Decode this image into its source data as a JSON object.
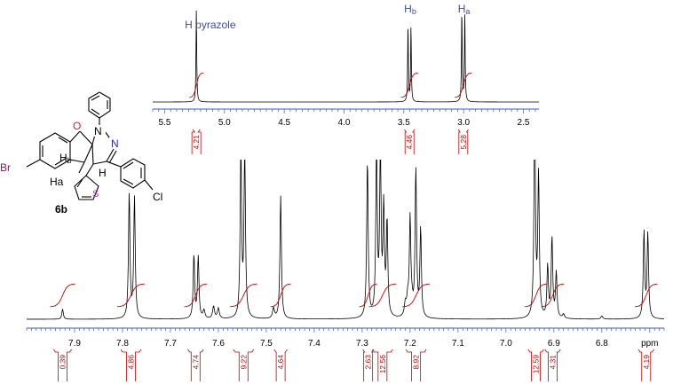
{
  "chart_data": [
    {
      "type": "line",
      "title": "",
      "xlabel": "ppm",
      "ylabel": "",
      "xlim": [
        8.0,
        6.67
      ],
      "x_ticks": [
        "7.9",
        "7.8",
        "7.7",
        "7.6",
        "7.5",
        "7.4",
        "7.3",
        "7.2",
        "7.1",
        "7.0",
        "6.9",
        "6.8",
        "ppm"
      ],
      "x_tick_values": [
        7.9,
        7.8,
        7.7,
        7.6,
        7.5,
        7.4,
        7.3,
        7.2,
        7.1,
        7.0,
        6.9,
        6.8,
        6.7
      ],
      "reversed_axis": true,
      "grid": false,
      "baseline_noise_points": [
        [
          7.63,
          0.04
        ],
        [
          7.61,
          0.06
        ],
        [
          7.6,
          0.05
        ],
        [
          7.485,
          0.05
        ],
        [
          7.205,
          0.08
        ],
        [
          7.21,
          0.06
        ],
        [
          7.196,
          0.05
        ],
        [
          6.8,
          0.015
        ],
        [
          6.88,
          0.02
        ]
      ],
      "peaks": [
        {
          "x": 7.925,
          "y": 0.05
        },
        {
          "x": 7.786,
          "y": 0.61
        },
        {
          "x": 7.775,
          "y": 0.59
        },
        {
          "x": 7.651,
          "y": 0.31
        },
        {
          "x": 7.642,
          "y": 0.3
        },
        {
          "x": 7.553,
          "y": 0.81
        },
        {
          "x": 7.545,
          "y": 0.81
        },
        {
          "x": 7.47,
          "y": 0.6
        },
        {
          "x": 7.289,
          "y": 0.77
        },
        {
          "x": 7.27,
          "y": 0.81
        },
        {
          "x": 7.262,
          "y": 0.79
        },
        {
          "x": 7.255,
          "y": 0.52
        },
        {
          "x": 7.248,
          "y": 0.46
        },
        {
          "x": 7.2,
          "y": 0.47
        },
        {
          "x": 7.188,
          "y": 0.72
        },
        {
          "x": 7.178,
          "y": 0.43
        },
        {
          "x": 6.94,
          "y": 1.0
        },
        {
          "x": 6.932,
          "y": 0.69
        },
        {
          "x": 6.913,
          "y": 0.25
        },
        {
          "x": 6.904,
          "y": 0.39
        },
        {
          "x": 6.895,
          "y": 0.22
        },
        {
          "x": 6.712,
          "y": 0.42
        },
        {
          "x": 6.704,
          "y": 0.41
        }
      ],
      "integrals": [
        {
          "center": 7.925,
          "from": 7.94,
          "to": 7.91,
          "value": "0.39"
        },
        {
          "center": 7.78,
          "from": 7.8,
          "to": 7.765,
          "value": "4.86"
        },
        {
          "center": 7.645,
          "from": 7.66,
          "to": 7.635,
          "value": "4.74"
        },
        {
          "center": 7.548,
          "from": 7.565,
          "to": 7.53,
          "value": "9.22"
        },
        {
          "center": 7.47,
          "from": 7.48,
          "to": 7.46,
          "value": "4.64"
        },
        {
          "center": 7.289,
          "from": 7.295,
          "to": 7.28,
          "value": "2.63"
        },
        {
          "center": 7.262,
          "from": 7.275,
          "to": 7.24,
          "value": "12.56"
        },
        {
          "center": 7.188,
          "from": 7.205,
          "to": 7.17,
          "value": "8.92"
        },
        {
          "center": 6.936,
          "from": 6.95,
          "to": 6.925,
          "value": "12.59"
        },
        {
          "center": 6.904,
          "from": 6.915,
          "to": 6.89,
          "value": "4.31"
        },
        {
          "center": 6.708,
          "from": 6.72,
          "to": 6.695,
          "value": "4.19"
        }
      ]
    },
    {
      "type": "line",
      "title": "",
      "xlabel": "",
      "ylabel": "",
      "xlim": [
        5.6,
        2.37
      ],
      "x_ticks": [
        "5.5",
        "5.0",
        "4.5",
        "4.0",
        "3.5",
        "3.0",
        "2.5"
      ],
      "x_tick_values": [
        5.5,
        5.0,
        4.5,
        4.0,
        3.5,
        3.0,
        2.5
      ],
      "reversed_axis": true,
      "grid": false,
      "peaks": [
        {
          "x": 5.235,
          "y": 1.0
        },
        {
          "x": 3.465,
          "y": 0.82
        },
        {
          "x": 3.44,
          "y": 0.8
        },
        {
          "x": 3.015,
          "y": 0.97
        },
        {
          "x": 2.99,
          "y": 0.95
        }
      ],
      "integrals": [
        {
          "center": 5.235,
          "from": 5.25,
          "to": 5.22,
          "value": "4.21"
        },
        {
          "center": 3.453,
          "from": 3.48,
          "to": 3.425,
          "value": "4.46"
        },
        {
          "center": 3.003,
          "from": 3.03,
          "to": 2.975,
          "value": "5.28"
        }
      ],
      "annotations": [
        {
          "text": "H pyrazole",
          "x": 5.235
        },
        {
          "text_main": "H",
          "text_sub": "b",
          "x": 3.453
        },
        {
          "text_main": "H",
          "text_sub": "a",
          "x": 3.003
        }
      ]
    }
  ],
  "molecule": {
    "compound_label": "6b",
    "atoms": {
      "Br": "Br",
      "O": "O",
      "N1": "N",
      "N2": "N",
      "S": "S",
      "Cl": "Cl",
      "Hb_main": "H",
      "Hb_sub": "b",
      "Ha": "Ha",
      "H": "H"
    },
    "colors": {
      "bromine": "#8b1a4a",
      "oxygen": "#e02020",
      "nitrogen": "#2a2ad0",
      "sulfur": "#e020e0",
      "chlorine": "#000000"
    }
  },
  "colors": {
    "spectrum": "#000000",
    "integral": "#cc0000",
    "axis": "#3a5bbf",
    "annotation": "#3b4bb3"
  }
}
